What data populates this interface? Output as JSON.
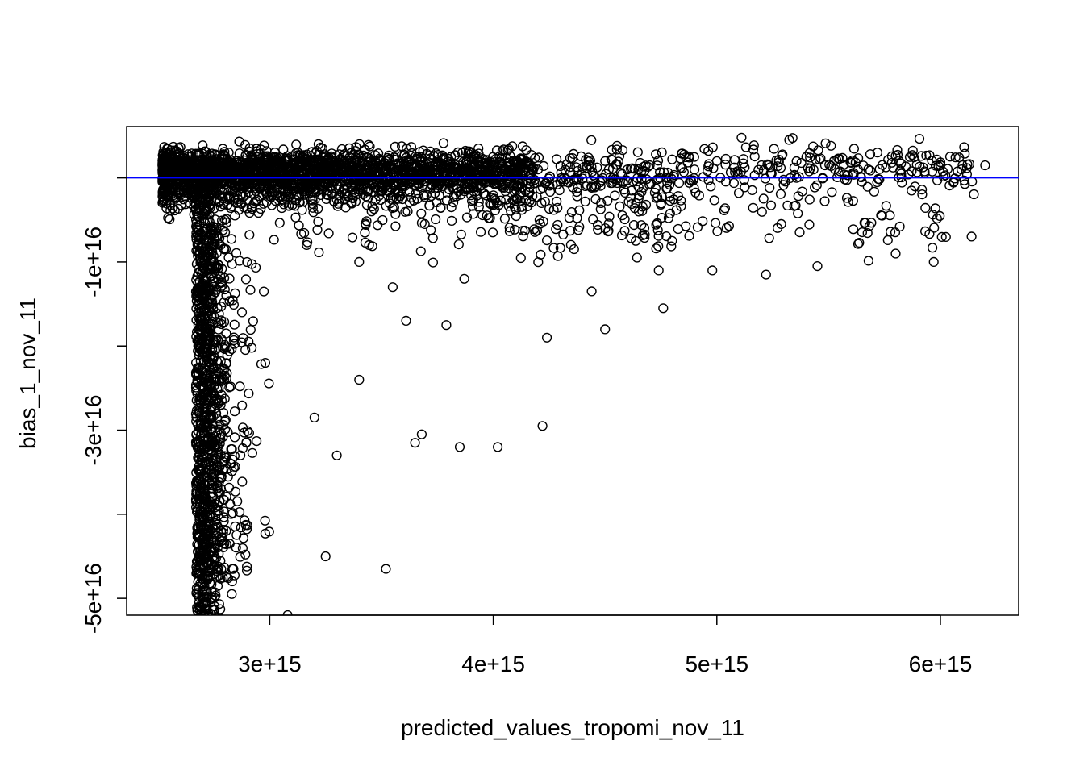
{
  "chart_data": {
    "type": "scatter",
    "title": "",
    "xlabel": "predicted_values_tropomi_nov_11",
    "ylabel": "bias_1_nov_11",
    "xlim": [
      2360000000000000.0,
      6350000000000000.0
    ],
    "ylim": [
      -5.2e+16,
      6100000000000000.0
    ],
    "x_ticks": [
      3000000000000000.0,
      4000000000000000.0,
      5000000000000000.0,
      6000000000000000.0
    ],
    "x_tick_labels": [
      "3e+15",
      "4e+15",
      "5e+15",
      "6e+15"
    ],
    "y_ticks": [
      -5e+16,
      -4e+16,
      -3e+16,
      -2e+16,
      -1e+16,
      0
    ],
    "y_tick_labels": [
      "-5e+16",
      "",
      "-3e+16",
      "",
      "-1e+16",
      ""
    ],
    "reference_line": {
      "y": 0,
      "color": "#0000ff"
    },
    "marker": "open-circle",
    "grid": false,
    "legend": "none",
    "series": [
      {
        "x": [
          2600000000000000.0,
          2620000000000000.0,
          2650000000000000.0,
          2700000000000000.0,
          2750000000000000.0,
          2800000000000000.0,
          2900000000000000.0,
          3000000000000000.0,
          3100000000000000.0,
          3200000000000000.0,
          3300000000000000.0,
          3400000000000000.0,
          3500000000000000.0,
          3600000000000000.0,
          3700000000000000.0,
          3800000000000000.0,
          3900000000000000.0,
          4000000000000000.0,
          4100000000000000.0,
          4200000000000000.0,
          4300000000000000.0,
          4400000000000000.0,
          4500000000000000.0,
          4600000000000000.0,
          4700000000000000.0,
          4800000000000000.0,
          4900000000000000.0,
          5000000000000000.0,
          5200000000000000.0,
          5400000000000000.0,
          5600000000000000.0,
          5800000000000000.0,
          6000000000000000.0,
          6200000000000000.0,
          2680000000000000.0,
          2690000000000000.0,
          2700000000000000.0,
          2710000000000000.0,
          2720000000000000.0,
          2700000000000000.0,
          2680000000000000.0,
          2730000000000000.0,
          2750000000000000.0,
          2780000000000000.0,
          2800000000000000.0,
          2850000000000000.0,
          2980000000000000.0,
          3080000000000000.0,
          3200000000000000.0,
          3300000000000000.0,
          3400000000000000.0,
          3520000000000000.0,
          3610000000000000.0,
          3650000000000000.0,
          3680000000000000.0,
          3850000000000000.0,
          4020000000000000.0,
          4220000000000000.0,
          4240000000000000.0,
          4440000000000000.0,
          4500000000000000.0,
          4740000000000000.0,
          4760000000000000.0,
          4980000000000000.0,
          5220000000000000.0,
          5450000000000000.0,
          5800000000000000.0,
          5970000000000000.0,
          3870000000000000.0,
          3790000000000000.0,
          3550000000000000.0,
          3400000000000000.0,
          3250000000000000.0
        ],
        "y": [
          1000000000000000.0,
          2000000000000000.0,
          1500000000000000.0,
          1000000000000000.0,
          2000000000000000.0,
          1200000000000000.0,
          1500000000000000.0,
          1000000000000000.0,
          1800000000000000.0,
          1200000000000000.0,
          1400000000000000.0,
          1000000000000000.0,
          1500000000000000.0,
          1300000000000000.0,
          1100000000000000.0,
          1600000000000000.0,
          1200000000000000.0,
          1500000000000000.0,
          1800000000000000.0,
          1000000000000000.0,
          1400000000000000.0,
          1200000000000000.0,
          2000000000000000.0,
          1000000000000000.0,
          1500000000000000.0,
          2200000000000000.0,
          1000000000000000.0,
          2000000000000000.0,
          1500000000000000.0,
          2500000000000000.0,
          1800000000000000.0,
          2600000000000000.0,
          1500000000000000.0,
          1500000000000000.0,
          -4.9e+16,
          -4.5e+16,
          -4e+16,
          -3.5e+16,
          -3e+16,
          -2.5e+16,
          -2e+16,
          -1.5e+16,
          -1e+16,
          -8000000000000000.0,
          -5000000000000000.0,
          -3000000000000000.0,
          -2.2e+16,
          -5.2e+16,
          -2.85e+16,
          -3.3e+16,
          -2.4e+16,
          -4.65e+16,
          -1.7e+16,
          -3.15e+16,
          -3.05e+16,
          -3.2e+16,
          -3.2e+16,
          -2.95e+16,
          -1.9e+16,
          -1.35e+16,
          -1.8e+16,
          -1.1e+16,
          -1.55e+16,
          -1.1e+16,
          -1.15e+16,
          -1.05e+16,
          -9000000000000000.0,
          -1e+16,
          -1.2e+16,
          -1.75e+16,
          -1.3e+16,
          -1e+16,
          -4.5e+16
        ]
      }
    ]
  }
}
